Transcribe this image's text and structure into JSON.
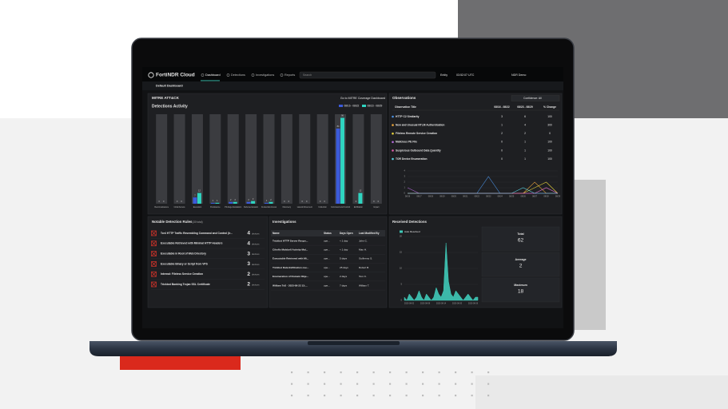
{
  "nav": {
    "brand": "FortiNDR Cloud",
    "tabs": [
      "Dashboard",
      "Detections",
      "Investigations",
      "Reports"
    ],
    "search": "Search",
    "entity": "Entity",
    "time": "03:52:07 UTC",
    "user": "NDR Demo"
  },
  "toolbar": {
    "dashboard": "Default Dashboard"
  },
  "mitre": {
    "title": "MITRE ATT&CK",
    "link": "Go to MITRE Coverage Dashboard",
    "chart_title": "Detections Activity",
    "categories": [
      "Reconnaissance",
      "Initial Access",
      "Execution",
      "Persistence",
      "Privilege Escalation",
      "Defense Evasion",
      "Credential Access",
      "Discovery",
      "Lateral Movement",
      "Collection",
      "Command and Control",
      "Exfiltration",
      "Impact"
    ],
    "series": [
      {
        "name": "08/16 - 08/22",
        "color": "#3b5bdb",
        "values": [
          0,
          0,
          7,
          1,
          2,
          2,
          1,
          0,
          0,
          0,
          84,
          0,
          0
        ]
      },
      {
        "name": "08/23 - 08/29",
        "color": "#2fd4c0",
        "values": [
          0,
          0,
          12,
          1,
          2,
          3,
          2,
          0,
          0,
          0,
          96,
          12,
          0
        ]
      }
    ],
    "ylim": [
      0,
      100
    ]
  },
  "observations": {
    "title": "Observations",
    "filter": "Confidence: All",
    "columns": [
      "Observation Title",
      "08/16 - 08/22",
      "08/23 - 08/29",
      "% Change"
    ],
    "rows": [
      {
        "title": "HTTP C2 Similarity",
        "color": "#4a90e2",
        "values": [
          3,
          6
        ],
        "change": 100,
        "trend": [
          0,
          0,
          0,
          0,
          0,
          0,
          0,
          3,
          0,
          0,
          0,
          0,
          1,
          0
        ]
      },
      {
        "title": "New and Unusual NTLM Authentication",
        "color": "#e8a33c",
        "values": [
          1,
          4
        ],
        "change": 300,
        "trend": [
          0,
          0,
          0,
          0,
          0,
          0,
          0,
          0,
          0,
          0,
          0,
          2,
          0,
          0
        ]
      },
      {
        "title": "Fileless Remote Service Creation",
        "color": "#e6d23c",
        "values": [
          2,
          2
        ],
        "change": 0,
        "trend": [
          0,
          0,
          0,
          0,
          0,
          0,
          0,
          0,
          0,
          0,
          0,
          1,
          2,
          0
        ]
      },
      {
        "title": "Malicious PE File",
        "color": "#b36ad8",
        "values": [
          0,
          1
        ],
        "change": 100,
        "trend": [
          1,
          0,
          0,
          0,
          0,
          0,
          0,
          0,
          0,
          0,
          0,
          0,
          0,
          0
        ]
      },
      {
        "title": "Suspicious Outbound Data Quantity",
        "color": "#e05ca8",
        "values": [
          0,
          1
        ],
        "change": 100,
        "trend": [
          0,
          0,
          0,
          0,
          0,
          0,
          0,
          0,
          0,
          0,
          0,
          0,
          1,
          0
        ]
      },
      {
        "title": "TOR Device Enumeration",
        "color": "#5ad0e0",
        "values": [
          0,
          1
        ],
        "change": 100,
        "trend": [
          0,
          0,
          0,
          0,
          0,
          0,
          0,
          0,
          0,
          0,
          1,
          0,
          0,
          0
        ]
      }
    ],
    "trend_x": [
      "08/16",
      "08/17",
      "08/18",
      "08/19",
      "08/20",
      "08/21",
      "08/22",
      "08/23",
      "08/24",
      "08/25",
      "08/26",
      "08/27",
      "08/28",
      "08/29"
    ],
    "trend_ylim": [
      0,
      4
    ],
    "trend_yticks": [
      0,
      1,
      2,
      3,
      4
    ]
  },
  "rules": {
    "title": "Notable Detection Rules",
    "total": "(30 total)",
    "unit": "devices",
    "rows": [
      {
        "name": "Tor4 HTTP Traffic Resembling Command and Control (Ir...",
        "count": 4
      },
      {
        "name": "Executable Retrieved with Minimal HTTP Headers",
        "count": 4
      },
      {
        "name": "Executable in Root of Web Directory",
        "count": 3
      },
      {
        "name": "Executable Binary or Script from VPS",
        "count": 3
      },
      {
        "name": "Internal: Fileless Service Creation",
        "count": 2
      },
      {
        "name": "Trickbot Banking Trojan SSL Certificate",
        "count": 2
      }
    ]
  },
  "investigations": {
    "title": "Investigations",
    "columns": [
      "Name",
      "Status",
      "Days Open",
      "Last Modified By"
    ],
    "rows": [
      [
        "Trickbot HTTP Server Respo...",
        "ope...",
        "< 1 day",
        "John C."
      ],
      [
        "Cihoflo Malsbell Activity Mal...",
        "ope...",
        "< 1 day",
        "Max H."
      ],
      [
        "Executable Retrieved with Mi...",
        "ope...",
        "5 days",
        "Guillermo S."
      ],
      [
        "Trickbot Data Exfiltration ove...",
        "ope...",
        "25 days",
        "Robert B."
      ],
      [
        "Enumeration of Domain Obje...",
        "ope...",
        "2 days",
        "Tom C."
      ],
      [
        "William TeS - 2023-08-22 13:...",
        "ope...",
        "7 days",
        "William T."
      ]
    ]
  },
  "received": {
    "title": "Received Detections",
    "legend": "Auto Resolved",
    "color": "#3fc9b8",
    "values": [
      1,
      0,
      2,
      1,
      0,
      1,
      3,
      1,
      0,
      2,
      1,
      0,
      1,
      4,
      2,
      1,
      3,
      18,
      6,
      2,
      1,
      3,
      2,
      1,
      0,
      1,
      2,
      1,
      0,
      1,
      1
    ],
    "x_labels": [
      "2023-08-02",
      "2023-08-08",
      "2023-08-14",
      "2023-08-20",
      "2023-08-26"
    ],
    "ylim": [
      0,
      20
    ],
    "yticks": [
      0,
      5,
      10,
      15,
      20
    ],
    "stats": [
      {
        "label": "Total",
        "value": 62
      },
      {
        "label": "Average",
        "value": 2
      },
      {
        "label": "Maximum",
        "value": 18
      }
    ]
  }
}
